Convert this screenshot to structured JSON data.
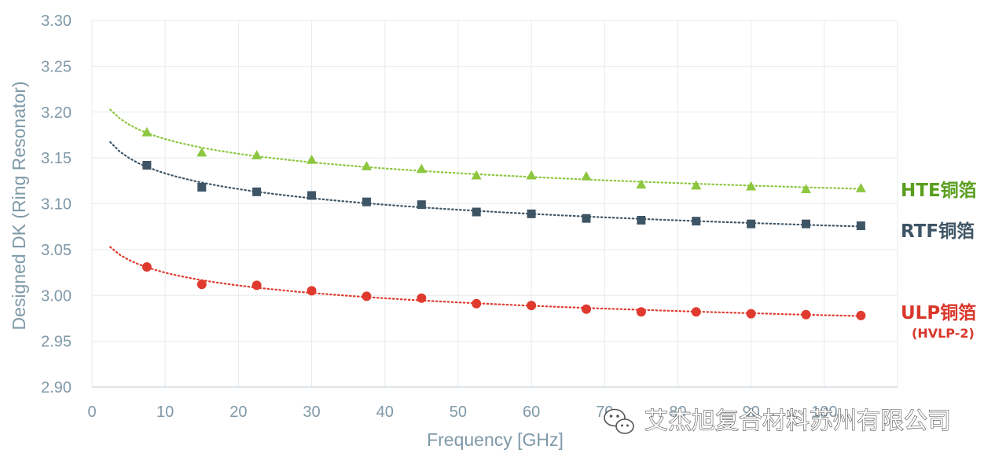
{
  "chart_data": {
    "type": "scatter",
    "xlabel": "Frequency [GHz]",
    "ylabel": "Designed DK (Ring Resonator)",
    "xlim": [
      0,
      110
    ],
    "ylim": [
      2.9,
      3.3
    ],
    "xticks": [
      "0",
      "10",
      "20",
      "30",
      "40",
      "50",
      "60",
      "70",
      "80",
      "90",
      "100"
    ],
    "yticks": [
      "2.90",
      "2.95",
      "3.00",
      "3.05",
      "3.10",
      "3.15",
      "3.20",
      "3.25",
      "3.30"
    ],
    "grid": true,
    "trendline": "dotted",
    "series": [
      {
        "name": "HTE铜箔",
        "marker": "triangle",
        "color": "#8dc63f",
        "label_color": "#5a9e1e",
        "x": [
          7.5,
          15,
          22.5,
          30,
          37.5,
          45,
          52.5,
          60,
          67.5,
          75,
          82.5,
          90,
          97.5,
          105
        ],
        "y": [
          3.178,
          3.156,
          3.153,
          3.148,
          3.141,
          3.138,
          3.131,
          3.131,
          3.13,
          3.121,
          3.12,
          3.119,
          3.116,
          3.117
        ]
      },
      {
        "name": "RTF铜箔",
        "marker": "square",
        "color": "#3e5566",
        "label_color": "#3e5566",
        "x": [
          7.5,
          15,
          22.5,
          30,
          37.5,
          45,
          52.5,
          60,
          67.5,
          75,
          82.5,
          90,
          97.5,
          105
        ],
        "y": [
          3.142,
          3.118,
          3.113,
          3.109,
          3.102,
          3.099,
          3.091,
          3.089,
          3.084,
          3.082,
          3.081,
          3.078,
          3.078,
          3.076
        ]
      },
      {
        "name": "ULP铜箔",
        "sublabel": "(HVLP-2)",
        "marker": "circle",
        "color": "#e03a2e",
        "label_color": "#d9372b",
        "x": [
          7.5,
          15,
          22.5,
          30,
          37.5,
          45,
          52.5,
          60,
          67.5,
          75,
          82.5,
          90,
          97.5,
          105
        ],
        "y": [
          3.031,
          3.012,
          3.011,
          3.005,
          2.999,
          2.997,
          2.991,
          2.989,
          2.985,
          2.982,
          2.982,
          2.98,
          2.979,
          2.978
        ]
      }
    ]
  },
  "watermark": {
    "text": "艾杰旭复合材料苏州有限公司",
    "icon": "wechat-icon"
  }
}
